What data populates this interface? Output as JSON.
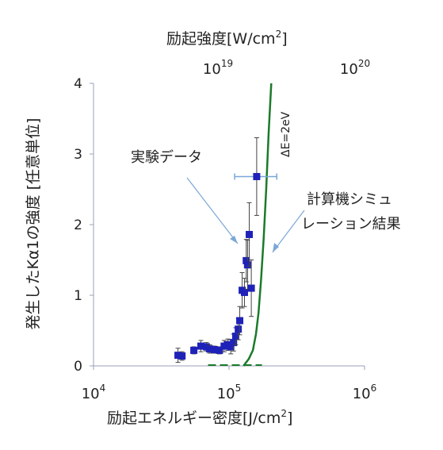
{
  "chart_data": {
    "type": "scatter",
    "top_axis": {
      "label_main": "励起強度[W/cm",
      "label_sup": "2",
      "label_end": "]",
      "scale": "log",
      "ticks": [
        {
          "base": "10",
          "exp": "19",
          "value": 1e+19
        },
        {
          "base": "10",
          "exp": "20",
          "value": 1e+20
        }
      ]
    },
    "x_axis": {
      "label_main": "励起エネルギー密度[J/cm",
      "label_sup": "2",
      "label_end": "]",
      "scale": "log",
      "range": [
        10000,
        1000000
      ],
      "ticks": [
        {
          "base": "10",
          "exp": "4",
          "value": 10000
        },
        {
          "base": "10",
          "exp": "5",
          "value": 100000
        },
        {
          "base": "10",
          "exp": "6",
          "value": 1000000
        }
      ]
    },
    "y_axis": {
      "label": "発生したKα1の強度 [任意単位]",
      "range": [
        0,
        4
      ],
      "ticks": [
        "0",
        "1",
        "2",
        "3",
        "4"
      ]
    },
    "colors": {
      "points": "#1f22b8",
      "sim": "#1b7a2a",
      "axis": "#9aa0b8",
      "annot": "#7aa7d6",
      "err": "#444444"
    },
    "series": [
      {
        "name": "実験データ",
        "points": [
          {
            "x": 42000,
            "y": 0.15,
            "err": 0.1
          },
          {
            "x": 45000,
            "y": 0.14,
            "err": 0.06
          },
          {
            "x": 55000,
            "y": 0.22,
            "err": 0.05
          },
          {
            "x": 62000,
            "y": 0.28,
            "err": 0.08
          },
          {
            "x": 68000,
            "y": 0.27,
            "err": 0.06
          },
          {
            "x": 72000,
            "y": 0.24,
            "err": 0.06
          },
          {
            "x": 78000,
            "y": 0.23,
            "err": 0.05
          },
          {
            "x": 85000,
            "y": 0.22,
            "err": 0.05
          },
          {
            "x": 92000,
            "y": 0.28,
            "err": 0.08
          },
          {
            "x": 98000,
            "y": 0.3,
            "err": 0.08
          },
          {
            "x": 103000,
            "y": 0.27,
            "err": 0.1
          },
          {
            "x": 108000,
            "y": 0.33,
            "err": 0.12
          },
          {
            "x": 112000,
            "y": 0.42,
            "err": 0.12
          },
          {
            "x": 117000,
            "y": 0.52,
            "err": 0.15
          },
          {
            "x": 120000,
            "y": 0.64,
            "err": 0.2
          },
          {
            "x": 125000,
            "y": 1.07,
            "err": 0.25
          },
          {
            "x": 130000,
            "y": 1.04,
            "err": 0.2
          },
          {
            "x": 134000,
            "y": 1.49,
            "err": 0.3
          },
          {
            "x": 137000,
            "y": 1.43,
            "err": 0.35
          },
          {
            "x": 141000,
            "y": 1.86,
            "err": 0.45
          },
          {
            "x": 146000,
            "y": 1.1,
            "err": 0.4
          },
          {
            "x": 160000,
            "y": 2.68,
            "err": 0.55,
            "xerr_lo": 110000,
            "xerr_hi": 225000
          }
        ]
      },
      {
        "name": "ΔE=2eV",
        "line": [
          {
            "x": 128000,
            "y": 0.0
          },
          {
            "x": 140000,
            "y": 0.1
          },
          {
            "x": 150000,
            "y": 0.22
          },
          {
            "x": 158000,
            "y": 0.45
          },
          {
            "x": 165000,
            "y": 0.75
          },
          {
            "x": 172000,
            "y": 1.2
          },
          {
            "x": 180000,
            "y": 1.8
          },
          {
            "x": 188000,
            "y": 2.5
          },
          {
            "x": 196000,
            "y": 3.3
          },
          {
            "x": 205000,
            "y": 4.0
          }
        ],
        "baseline": [
          {
            "x": 70000,
            "y": 0.0
          },
          {
            "x": 175000,
            "y": 0.0
          }
        ]
      }
    ],
    "annotations": [
      {
        "text": "実験データ"
      },
      {
        "text": "計算機シミュ"
      },
      {
        "text": "レーション結果"
      },
      {
        "text": "ΔE=2eV"
      }
    ]
  }
}
